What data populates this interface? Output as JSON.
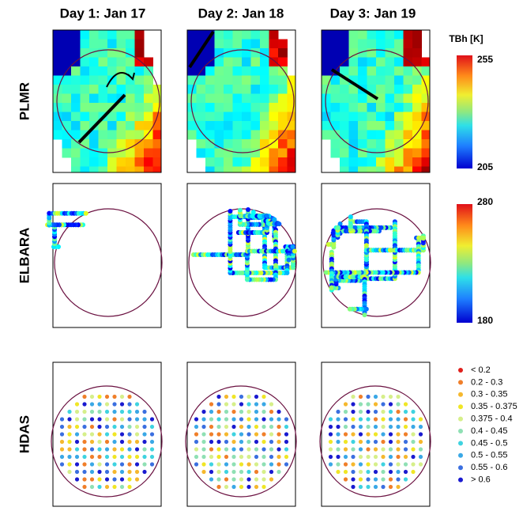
{
  "columns": [
    "Day 1: Jan 17",
    "Day 2: Jan 18",
    "Day 3: Jan 19"
  ],
  "rows": [
    "PLMR",
    "ELBARA",
    "HDAS"
  ],
  "colorbars": [
    {
      "title": "TBh [K]",
      "max": "255",
      "min": "205"
    },
    {
      "max": "280",
      "min": "180"
    }
  ],
  "legend": [
    {
      "label": "< 0.2",
      "color": "#e0201c"
    },
    {
      "label": "0.2 - 0.3",
      "color": "#f07f2a"
    },
    {
      "label": "0.3 - 0.35",
      "color": "#f5b82e"
    },
    {
      "label": "0.35 - 0.375",
      "color": "#f0e626"
    },
    {
      "label": "0.375 - 0.4",
      "color": "#d6ef8a"
    },
    {
      "label": "0.4 - 0.45",
      "color": "#8fe0b4"
    },
    {
      "label": "0.45 - 0.5",
      "color": "#3fd3e0"
    },
    {
      "label": "0.5 - 0.55",
      "color": "#3aa8e6"
    },
    {
      "label": "0.55 - 0.6",
      "color": "#3b6fe0"
    },
    {
      "label": "> 0.6",
      "color": "#1a1ad0"
    }
  ]
}
